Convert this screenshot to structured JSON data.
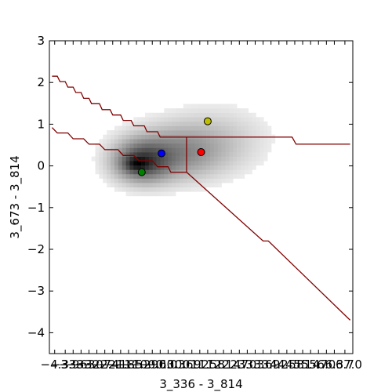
{
  "chart_data": {
    "type": "heatmap",
    "title": "",
    "xlabel": "3_336 - 3_814",
    "ylabel": "3_673 - 3_814",
    "xlim": [
      -4.5,
      7.0
    ],
    "ylim": [
      -4.5,
      3.0
    ],
    "grid": false,
    "x_ticks": [
      {
        "value": -4.3,
        "label": "−4.3"
      },
      {
        "value": -3.9,
        "label": "−3.9"
      },
      {
        "value": -3.6,
        "label": "−3.6"
      },
      {
        "value": -3.3,
        "label": "−3.3"
      },
      {
        "value": -3.0,
        "label": "−3.0"
      },
      {
        "value": -2.7,
        "label": "−2.7"
      },
      {
        "value": -2.4,
        "label": "−2.4"
      },
      {
        "value": -2.1,
        "label": "−2.1"
      },
      {
        "value": -1.8,
        "label": "−1.8"
      },
      {
        "value": -1.5,
        "label": "−1.5"
      },
      {
        "value": -1.2,
        "label": "−1.2"
      },
      {
        "value": -0.9,
        "label": "−0.9"
      },
      {
        "value": -0.6,
        "label": "−0.6"
      },
      {
        "value": -0.3,
        "label": "−0.3"
      },
      {
        "value": 0.0,
        "label": "0.0"
      },
      {
        "value": 0.3,
        "label": "0.3"
      },
      {
        "value": 0.6,
        "label": "0.6"
      },
      {
        "value": 0.9,
        "label": "0.9"
      },
      {
        "value": 1.2,
        "label": "1.2"
      },
      {
        "value": 1.5,
        "label": "1.5"
      },
      {
        "value": 1.8,
        "label": "1.8"
      },
      {
        "value": 2.1,
        "label": "2.1"
      },
      {
        "value": 2.4,
        "label": "2.4"
      },
      {
        "value": 2.7,
        "label": "2.7"
      },
      {
        "value": 3.0,
        "label": "3.0"
      },
      {
        "value": 3.3,
        "label": "3.3"
      },
      {
        "value": 3.6,
        "label": "3.6"
      },
      {
        "value": 3.9,
        "label": "3.9"
      },
      {
        "value": 4.2,
        "label": "4.2"
      },
      {
        "value": 4.5,
        "label": "4.5"
      },
      {
        "value": 4.8,
        "label": "4.8"
      },
      {
        "value": 5.1,
        "label": "5.1"
      },
      {
        "value": 5.4,
        "label": "5.4"
      },
      {
        "value": 5.7,
        "label": "5.7"
      },
      {
        "value": 6.0,
        "label": "6.0"
      },
      {
        "value": 6.3,
        "label": "6.3"
      },
      {
        "value": 6.7,
        "label": "6.7"
      },
      {
        "value": 7.0,
        "label": "7.0"
      }
    ],
    "y_ticks": [
      {
        "value": 3,
        "label": "3"
      },
      {
        "value": 2,
        "label": "2"
      },
      {
        "value": 1,
        "label": "1"
      },
      {
        "value": 0,
        "label": "0"
      },
      {
        "value": -1,
        "label": "−1"
      },
      {
        "value": -2,
        "label": "−2"
      },
      {
        "value": -3,
        "label": "−3"
      },
      {
        "value": -4,
        "label": "−4"
      }
    ],
    "density_blobs": [
      {
        "cx": -1.0,
        "cy": 0.1,
        "sx": 0.7,
        "sy": 0.32,
        "w": 1.0
      },
      {
        "cx": 0.2,
        "cy": 0.3,
        "sx": 1.2,
        "sy": 0.42,
        "w": 0.6
      },
      {
        "cx": 1.8,
        "cy": 0.65,
        "sx": 1.3,
        "sy": 0.5,
        "w": 0.22
      },
      {
        "cx": -1.2,
        "cy": 0.05,
        "sx": 0.3,
        "sy": 0.12,
        "w": 0.6
      }
    ],
    "boundary_color": "#800000",
    "boundaries": [
      {
        "name": "",
        "points": [
          [
            -4.4,
            2.15
          ],
          [
            -4.2,
            2.15
          ],
          [
            -4.1,
            2.02
          ],
          [
            -3.9,
            2.02
          ],
          [
            -3.8,
            1.89
          ],
          [
            -3.6,
            1.89
          ],
          [
            -3.5,
            1.76
          ],
          [
            -3.3,
            1.76
          ],
          [
            -3.2,
            1.62
          ],
          [
            -3.0,
            1.62
          ],
          [
            -2.9,
            1.49
          ],
          [
            -2.6,
            1.49
          ],
          [
            -2.5,
            1.35
          ],
          [
            -2.2,
            1.35
          ],
          [
            -2.1,
            1.22
          ],
          [
            -1.8,
            1.22
          ],
          [
            -1.7,
            1.09
          ],
          [
            -1.4,
            1.09
          ],
          [
            -1.3,
            0.96
          ],
          [
            -0.9,
            0.96
          ],
          [
            -0.8,
            0.82
          ],
          [
            -0.4,
            0.82
          ],
          [
            -0.3,
            0.69
          ],
          [
            4.7,
            0.69
          ],
          [
            4.85,
            0.52
          ],
          [
            6.9,
            0.52
          ]
        ]
      },
      {
        "name": "",
        "points": [
          [
            -4.4,
            0.92
          ],
          [
            -4.2,
            0.79
          ],
          [
            -3.8,
            0.79
          ],
          [
            -3.6,
            0.65
          ],
          [
            -3.2,
            0.65
          ],
          [
            -3.0,
            0.52
          ],
          [
            -2.6,
            0.52
          ],
          [
            -2.4,
            0.39
          ],
          [
            -1.9,
            0.39
          ],
          [
            -1.7,
            0.25
          ],
          [
            -1.3,
            0.25
          ],
          [
            -1.1,
            0.12
          ],
          [
            -0.6,
            0.12
          ],
          [
            -0.4,
            -0.02
          ],
          [
            0.0,
            -0.02
          ],
          [
            0.1,
            -0.15
          ],
          [
            0.7,
            -0.15
          ],
          [
            0.7,
            -0.02
          ],
          [
            0.7,
            0.69
          ]
        ]
      },
      {
        "name": "",
        "points": [
          [
            0.7,
            -0.15
          ],
          [
            3.6,
            -1.8
          ],
          [
            3.8,
            -1.8
          ],
          [
            6.9,
            -3.7
          ]
        ]
      }
    ],
    "points": [
      {
        "x": -1.0,
        "y": -0.15,
        "color": "#008000"
      },
      {
        "x": -0.25,
        "y": 0.3,
        "color": "#0000ff"
      },
      {
        "x": 1.25,
        "y": 0.33,
        "color": "#ff0000"
      },
      {
        "x": 1.5,
        "y": 1.07,
        "color": "#bfbf00"
      }
    ]
  }
}
